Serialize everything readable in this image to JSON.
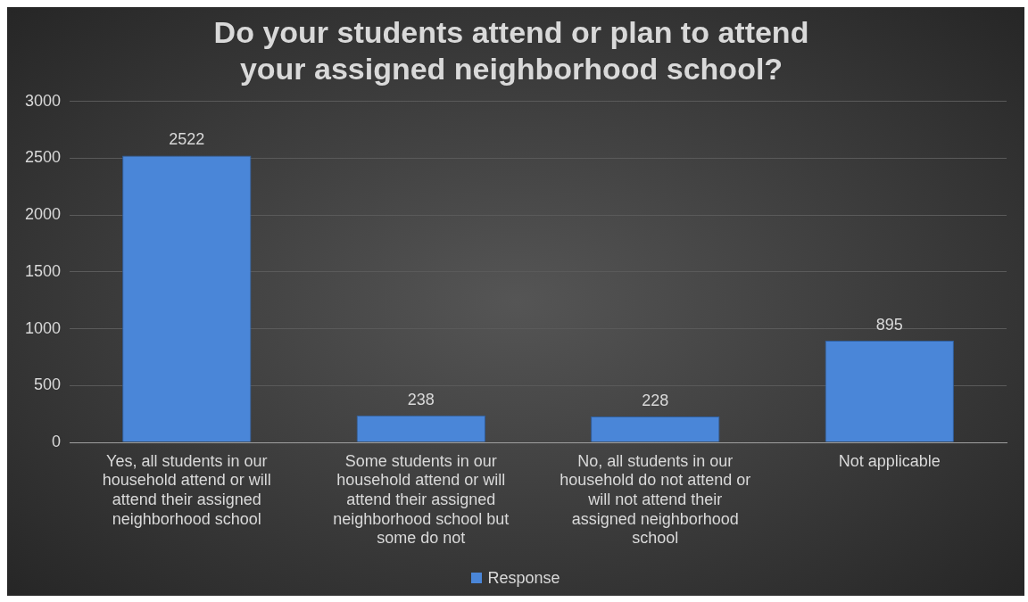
{
  "chart_data": {
    "type": "bar",
    "title": "Do your students attend or plan to attend your assigned neighborhood school?",
    "categories": [
      "Yes, all students in our household attend or will attend their assigned neighborhood school",
      "Some students in our household attend or will attend their assigned neighborhood school but some do not",
      "No, all students in our household do not attend or will not attend their assigned neighborhood school",
      "Not applicable"
    ],
    "series": [
      {
        "name": "Response",
        "color": "#4a86d8",
        "values": [
          2522,
          238,
          228,
          895
        ]
      }
    ],
    "ylim": [
      0,
      3000
    ],
    "yticks": [
      0,
      500,
      1000,
      1500,
      2000,
      2500,
      3000
    ],
    "grid": "y",
    "legend": "bottom",
    "data_labels": true
  }
}
